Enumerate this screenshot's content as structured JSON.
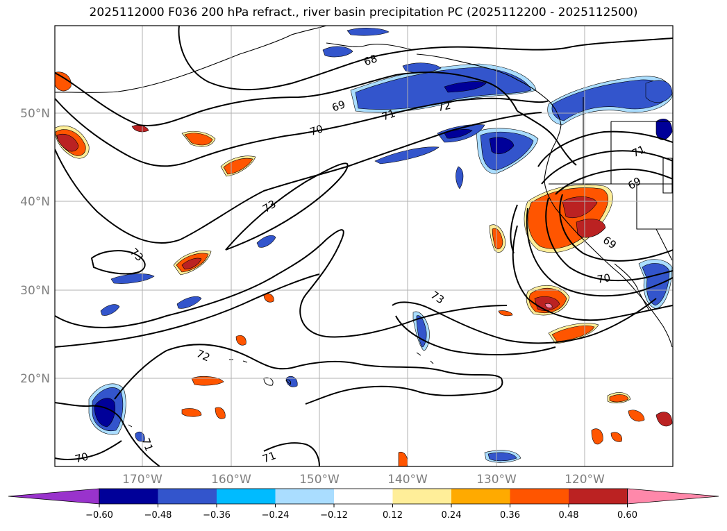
{
  "title": "2025112000 F036 200 hPa refract., river basin precipitation PC (2025112200 - 2025112500)",
  "map": {
    "lat_labels": [
      "50°N",
      "40°N",
      "30°N",
      "20°N"
    ],
    "lon_labels": [
      "170°W",
      "160°W",
      "150°W",
      "140°W",
      "130°W",
      "120°W"
    ],
    "contour_labels": [
      "68",
      "69",
      "70",
      "71",
      "72",
      "73",
      "73",
      "73",
      "72",
      "71",
      "71",
      "70",
      "71",
      "69",
      "69",
      "70",
      "71",
      "73"
    ]
  },
  "colorbar": {
    "colors": [
      "#9933cc",
      "#000099",
      "#3355cc",
      "#00bbff",
      "#aaddff",
      "#ffffff",
      "#ffee99",
      "#ffaa00",
      "#ff5500",
      "#bb2222",
      "#ff88aa"
    ],
    "tick_labels": [
      "−0.60",
      "−0.48",
      "−0.36",
      "−0.24",
      "−0.12",
      "0.12",
      "0.24",
      "0.36",
      "0.48",
      "0.60"
    ]
  }
}
